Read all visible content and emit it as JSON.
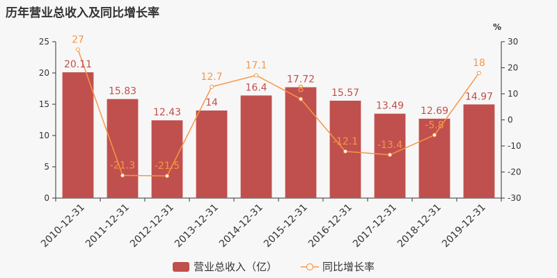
{
  "chart_data": {
    "type": "bar",
    "title": "历年营业总收入及同比增长率",
    "categories": [
      "2010-12-31",
      "2011-12-31",
      "2012-12-31",
      "2013-12-31",
      "2014-12-31",
      "2015-12-31",
      "2016-12-31",
      "2017-12-31",
      "2018-12-31",
      "2019-12-31"
    ],
    "series": [
      {
        "name": "营业总收入（亿）",
        "type": "bar",
        "axis": "left",
        "color": "#c0504d",
        "values": [
          20.11,
          15.83,
          12.43,
          14,
          16.4,
          17.72,
          15.57,
          13.49,
          12.69,
          14.97
        ]
      },
      {
        "name": "同比增长率",
        "type": "line",
        "axis": "right",
        "color": "#f79646",
        "values": [
          27,
          -21.3,
          -21.5,
          12.7,
          17.1,
          8,
          -12.1,
          -13.4,
          -5.8,
          18
        ]
      }
    ],
    "y_left": {
      "min": 0,
      "max": 25,
      "ticks": [
        0,
        5,
        10,
        15,
        20,
        25
      ]
    },
    "y_right": {
      "label": "%",
      "min": -30,
      "max": 30,
      "ticks": [
        -30,
        -20,
        -10,
        0,
        10,
        20,
        30
      ]
    },
    "grid": false,
    "legend_position": "bottom"
  }
}
